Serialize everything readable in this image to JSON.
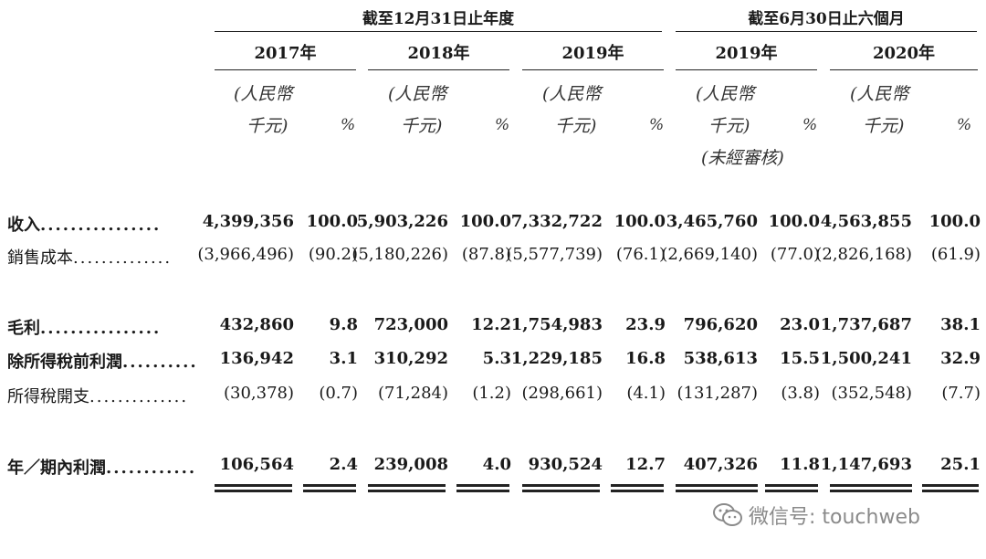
{
  "headers": {
    "group1": "截至12月31日止年度",
    "group2": "截至6月30日止六個月",
    "years": [
      "2017年",
      "2018年",
      "2019年",
      "2019年",
      "2020年"
    ],
    "unit_line1": "(人民幣",
    "unit_line2": "千元)",
    "unaudited": "(未經審核)",
    "pct": "%"
  },
  "rows": [
    {
      "label": "收入",
      "dots": "................",
      "bold": true,
      "values": [
        "4,399,356",
        "100.0",
        "5,903,226",
        "100.0",
        "7,332,722",
        "100.0",
        "3,465,760",
        "100.0",
        "4,563,855",
        "100.0"
      ]
    },
    {
      "label": "銷售成本",
      "dots": "..............",
      "bold": false,
      "values": [
        "(3,966,496)",
        "(90.2)",
        "(5,180,226)",
        "(87.8)",
        "(5,577,739)",
        "(76.1)",
        "(2,669,140)",
        "(77.0)",
        "(2,826,168)",
        "(61.9)"
      ]
    },
    {
      "label": "毛利",
      "dots": "................",
      "bold": true,
      "values": [
        "432,860",
        "9.8",
        "723,000",
        "12.2",
        "1,754,983",
        "23.9",
        "796,620",
        "23.0",
        "1,737,687",
        "38.1"
      ]
    },
    {
      "label": "除所得稅前利潤",
      "dots": "..........",
      "bold": true,
      "values": [
        "136,942",
        "3.1",
        "310,292",
        "5.3",
        "1,229,185",
        "16.8",
        "538,613",
        "15.5",
        "1,500,241",
        "32.9"
      ]
    },
    {
      "label": "所得稅開支",
      "dots": "..............",
      "bold": false,
      "values": [
        "(30,378)",
        "(0.7)",
        "(71,284)",
        "(1.2)",
        "(298,661)",
        "(4.1)",
        "(131,287)",
        "(3.8)",
        "(352,548)",
        "(7.7)"
      ]
    },
    {
      "label": "年／期內利潤",
      "dots": "............",
      "bold": true,
      "values": [
        "106,564",
        "2.4",
        "239,008",
        "4.0",
        "930,524",
        "12.7",
        "407,326",
        "11.8",
        "1,147,693",
        "25.1"
      ]
    }
  ],
  "watermark": {
    "text": "微信号: touchweb",
    "icon": "wechat-icon"
  }
}
